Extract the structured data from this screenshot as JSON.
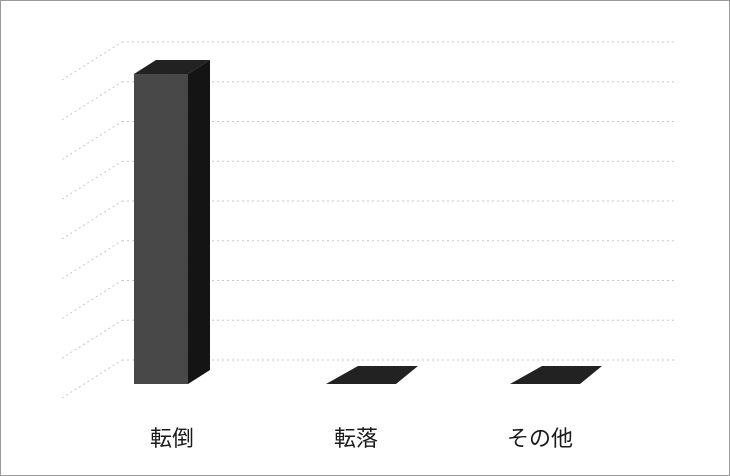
{
  "chart_data": {
    "type": "bar",
    "style": "3d",
    "categories": [
      "転倒",
      "転落",
      "その他"
    ],
    "values": [
      10,
      0,
      0
    ],
    "ylim": [
      0,
      10
    ],
    "grid": true,
    "legend": "none",
    "colors": {
      "bar_front": "#4a4a4a",
      "bar_side": "#141414",
      "bar_top": "#222222",
      "grid": "#c8c8c8",
      "frame": "#9a9a9a"
    }
  }
}
